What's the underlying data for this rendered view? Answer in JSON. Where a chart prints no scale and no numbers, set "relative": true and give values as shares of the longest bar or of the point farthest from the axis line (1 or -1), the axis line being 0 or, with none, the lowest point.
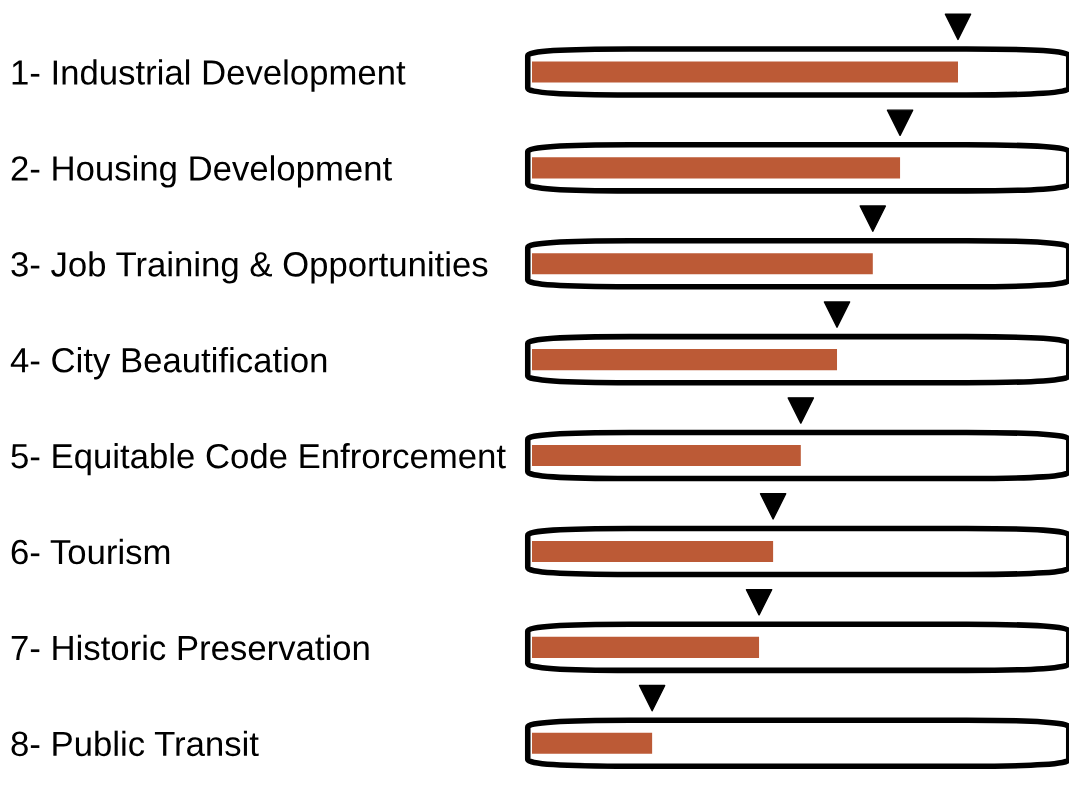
{
  "chart_data": {
    "type": "bar",
    "orientation": "horizontal",
    "relative": true,
    "categories": [
      "1- Industrial Development",
      "2- Housing Development",
      "3- Job Training & Opportunities",
      "4- City Beautification",
      "5- Equitable Code Enfrorcement",
      "6- Tourism",
      "7- Historic Preservation",
      "8- Public Transit"
    ],
    "values": [
      1,
      0.864,
      0.8,
      0.716,
      0.631,
      0.566,
      0.533,
      0.282
    ],
    "color": "#bc5a36",
    "grid": false,
    "legend": false
  }
}
